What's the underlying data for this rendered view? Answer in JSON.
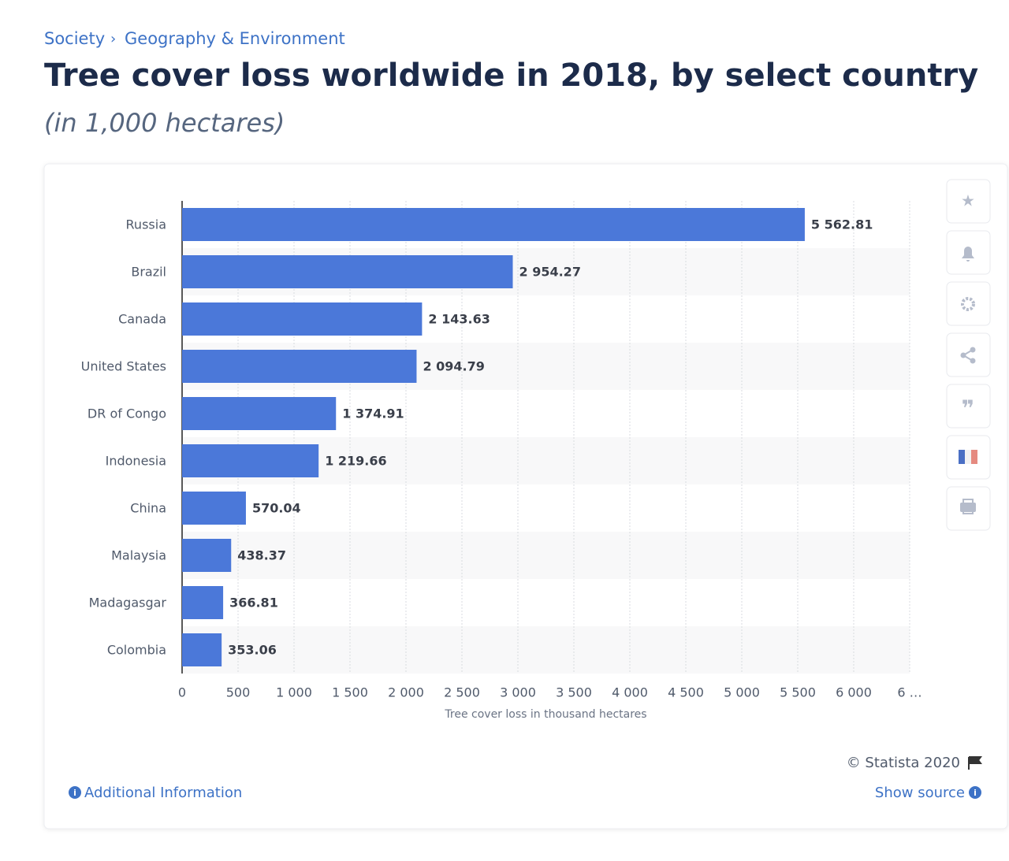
{
  "page": {
    "breadcrumb": [
      "Society",
      "Geography & Environment"
    ],
    "copyright": "© Statista 2020",
    "additional_info": "Additional Information",
    "show_source": "Show source"
  },
  "chart_data": {
    "type": "hbar",
    "title": "Tree cover loss worldwide in 2018, by select country",
    "subtitle": "(in 1,000 hectares)",
    "xlabel": "Tree cover loss in thousand hectares",
    "categories": [
      "Russia",
      "Brazil",
      "Canada",
      "United States",
      "DR of Congo",
      "Indonesia",
      "China",
      "Malaysia",
      "Madagasgar",
      "Colombia"
    ],
    "values": [
      5562.81,
      2954.27,
      2143.63,
      2094.79,
      1374.91,
      1219.66,
      570.04,
      438.37,
      366.81,
      353.06
    ],
    "value_labels": [
      "5 562.81",
      "2 954.27",
      "2 143.63",
      "2 094.79",
      "1 374.91",
      "1 219.66",
      "570.04",
      "438.37",
      "366.81",
      "353.06"
    ],
    "color": "#4b78d9",
    "xlim": [
      0,
      6500
    ],
    "xticks": [
      0,
      500,
      {
        "value": 1000,
        "label": "1 000"
      },
      {
        "value": 1500,
        "label": "1 500"
      },
      {
        "value": 2000,
        "label": "2 000"
      },
      {
        "value": 2500,
        "label": "2 500"
      },
      {
        "value": 3000,
        "label": "3 000"
      },
      {
        "value": 3500,
        "label": "3 500"
      },
      {
        "value": 4000,
        "label": "4 000"
      },
      {
        "value": 4500,
        "label": "4 500"
      },
      {
        "value": 5000,
        "label": "5 000"
      },
      {
        "value": 5500,
        "label": "5 500"
      },
      {
        "value": 6000,
        "label": "6 000"
      },
      {
        "value": 6500,
        "label": "6 …"
      }
    ],
    "grid": true
  }
}
